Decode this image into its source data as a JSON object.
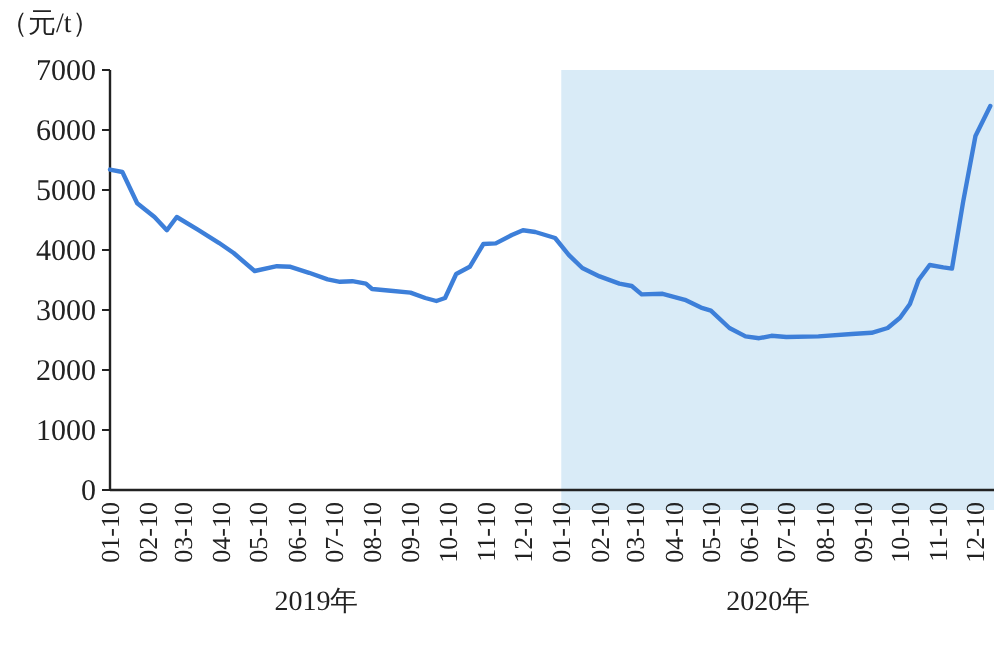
{
  "chart_data": {
    "type": "line",
    "ylabel": "（元/t）",
    "annotations": [
      "2019年",
      "2020年"
    ],
    "x": [
      "2019-01-10",
      "2019-01-20",
      "2019-02-01",
      "2019-02-15",
      "2019-02-25",
      "2019-03-05",
      "2019-03-22",
      "2019-04-08",
      "2019-04-20",
      "2019-05-07",
      "2019-05-25",
      "2019-06-05",
      "2019-06-20",
      "2019-07-05",
      "2019-07-15",
      "2019-07-25",
      "2019-08-05",
      "2019-08-10",
      "2019-08-25",
      "2019-09-10",
      "2019-09-22",
      "2019-10-01",
      "2019-10-08",
      "2019-10-17",
      "2019-10-28",
      "2019-11-08",
      "2019-11-18",
      "2019-12-01",
      "2019-12-10",
      "2019-12-20",
      "2020-01-05",
      "2020-01-16",
      "2020-01-27",
      "2020-02-10",
      "2020-02-26",
      "2020-03-07",
      "2020-03-15",
      "2020-04-01",
      "2020-04-19",
      "2020-05-02",
      "2020-05-10",
      "2020-05-25",
      "2020-06-07",
      "2020-06-18",
      "2020-06-28",
      "2020-07-10",
      "2020-08-05",
      "2020-09-01",
      "2020-09-17",
      "2020-09-30",
      "2020-10-10",
      "2020-10-18",
      "2020-10-25",
      "2020-11-03",
      "2020-11-14",
      "2020-11-21",
      "2020-11-30",
      "2020-12-10",
      "2020-12-22"
    ],
    "series": [
      {
        "color": "#3d7fd9",
        "values": [
          5340,
          5300,
          4780,
          4550,
          4330,
          4550,
          4340,
          4120,
          3950,
          3650,
          3730,
          3720,
          3620,
          3510,
          3470,
          3480,
          3440,
          3350,
          3320,
          3290,
          3200,
          3150,
          3200,
          3600,
          3720,
          4100,
          4110,
          4250,
          4330,
          4300,
          4200,
          3920,
          3700,
          3560,
          3440,
          3400,
          3260,
          3270,
          3170,
          3040,
          2990,
          2700,
          2560,
          2530,
          2570,
          2550,
          2560,
          2600,
          2620,
          2700,
          2870,
          3100,
          3500,
          3750,
          3710,
          3690,
          4800,
          5900,
          6400
        ]
      }
    ],
    "xlim": [
      "2019-01-10",
      "2020-12-25"
    ],
    "xticks": [
      {
        "value": "2019-01-10",
        "label": "01-10"
      },
      {
        "value": "2019-02-10",
        "label": "02-10"
      },
      {
        "value": "2019-03-10",
        "label": "03-10"
      },
      {
        "value": "2019-04-10",
        "label": "04-10"
      },
      {
        "value": "2019-05-10",
        "label": "05-10"
      },
      {
        "value": "2019-06-10",
        "label": "06-10"
      },
      {
        "value": "2019-07-10",
        "label": "07-10"
      },
      {
        "value": "2019-08-10",
        "label": "08-10"
      },
      {
        "value": "2019-09-10",
        "label": "09-10"
      },
      {
        "value": "2019-10-10",
        "label": "10-10"
      },
      {
        "value": "2019-11-10",
        "label": "11-10"
      },
      {
        "value": "2019-12-10",
        "label": "12-10"
      },
      {
        "value": "2020-01-10",
        "label": "01-10"
      },
      {
        "value": "2020-02-10",
        "label": "02-10"
      },
      {
        "value": "2020-03-10",
        "label": "03-10"
      },
      {
        "value": "2020-04-10",
        "label": "04-10"
      },
      {
        "value": "2020-05-10",
        "label": "05-10"
      },
      {
        "value": "2020-06-10",
        "label": "06-10"
      },
      {
        "value": "2020-07-10",
        "label": "07-10"
      },
      {
        "value": "2020-08-10",
        "label": "08-10"
      },
      {
        "value": "2020-09-10",
        "label": "09-10"
      },
      {
        "value": "2020-10-10",
        "label": "10-10"
      },
      {
        "value": "2020-11-10",
        "label": "11-10"
      },
      {
        "value": "2020-12-10",
        "label": "12-10"
      }
    ],
    "ylim": [
      0,
      7000
    ],
    "yticks": [
      0,
      1000,
      2000,
      3000,
      4000,
      5000,
      6000,
      7000
    ],
    "bands": [
      {
        "axis": "x",
        "from": "2020-01-10",
        "to": "2020-12-25",
        "color": "#d9ebf7"
      }
    ],
    "grid": false,
    "marker": "none",
    "line_style": "solid"
  }
}
